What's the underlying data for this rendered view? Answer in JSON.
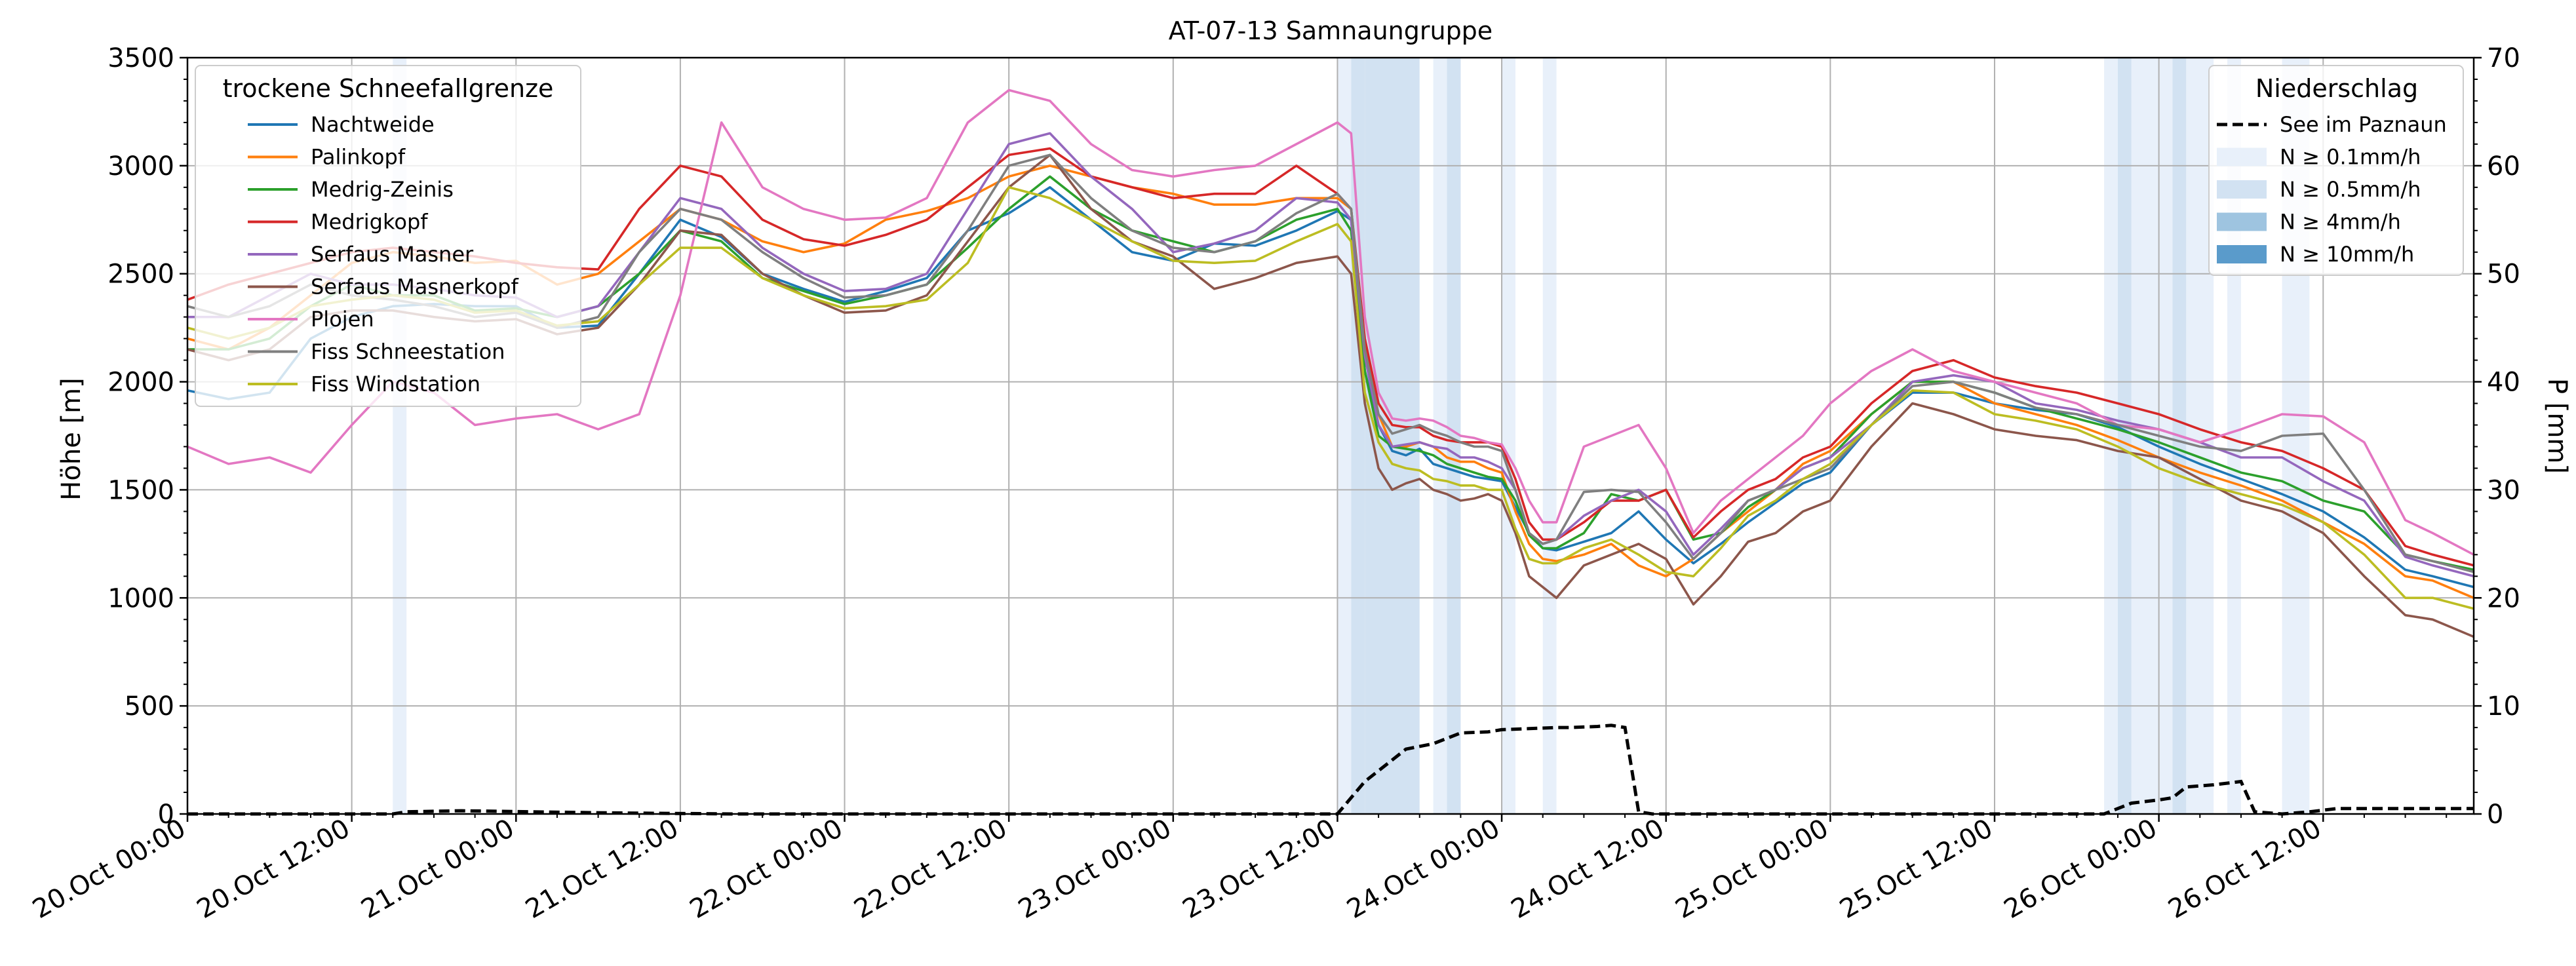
{
  "chart_data": {
    "type": "line",
    "title": "AT-07-13 Samnaungruppe",
    "ylabel": "Höhe [m]",
    "y2label": "P [mm]",
    "xlim_hours": [
      0,
      167
    ],
    "ylim": [
      0,
      3500
    ],
    "y2lim": [
      0,
      70
    ],
    "yticks": [
      0,
      500,
      1000,
      1500,
      2000,
      2500,
      3000,
      3500
    ],
    "y2ticks": [
      0,
      10,
      20,
      30,
      40,
      50,
      60,
      70
    ],
    "grid": true,
    "x_tick_labels": [
      "20.Oct 00:00",
      "20.Oct 12:00",
      "21.Oct 00:00",
      "21.Oct 12:00",
      "22.Oct 00:00",
      "22.Oct 12:00",
      "23.Oct 00:00",
      "23.Oct 12:00",
      "24.Oct 00:00",
      "24.Oct 12:00",
      "25.Oct 00:00",
      "25.Oct 12:00",
      "26.Oct 00:00",
      "26.Oct 12:00"
    ],
    "legend_left": {
      "title": "trockene Schneefallgrenze",
      "placement": "upper-left",
      "entries": [
        "Nachtweide",
        "Palinkopf",
        "Medrig-Zeinis",
        "Medrigkopf",
        "Serfaus Masner",
        "Serfaus Masnerkopf",
        "Plojen",
        "Fiss Schneestation",
        "Fiss Windstation"
      ]
    },
    "legend_right": {
      "title": "Niederschlag",
      "placement": "upper-right",
      "entries": [
        "See im Paznaun",
        "N ≥ 0.1mm/h",
        "N ≥ 0.5mm/h",
        "N ≥ 4mm/h",
        "N ≥ 10mm/h"
      ]
    },
    "precip_band_colors": [
      "#e8f0fa",
      "#d2e2f2",
      "#9ec4e0",
      "#5a9bcb"
    ],
    "precip_bands": [
      {
        "start": 15,
        "end": 16,
        "level": 0
      },
      {
        "start": 84,
        "end": 85,
        "level": 0
      },
      {
        "start": 85,
        "end": 86,
        "level": 1
      },
      {
        "start": 86,
        "end": 90,
        "level": 1
      },
      {
        "start": 91,
        "end": 92,
        "level": 0
      },
      {
        "start": 92,
        "end": 93,
        "level": 1
      },
      {
        "start": 96,
        "end": 97,
        "level": 0
      },
      {
        "start": 99,
        "end": 100,
        "level": 0
      },
      {
        "start": 140,
        "end": 141,
        "level": 0
      },
      {
        "start": 141,
        "end": 142,
        "level": 1
      },
      {
        "start": 142,
        "end": 145,
        "level": 0
      },
      {
        "start": 145,
        "end": 146,
        "level": 1
      },
      {
        "start": 146,
        "end": 148,
        "level": 0
      },
      {
        "start": 149,
        "end": 150,
        "level": 0
      },
      {
        "start": 153,
        "end": 155,
        "level": 0
      }
    ],
    "precip_series": {
      "name": "See im Paznaun",
      "color": "#000000",
      "x": [
        0,
        15,
        16,
        20,
        25,
        31,
        40,
        84,
        86,
        87,
        89,
        91,
        92,
        93,
        95,
        96,
        98,
        100,
        101,
        103,
        104,
        105,
        106,
        107,
        108,
        109,
        140,
        142,
        144,
        145,
        146,
        148,
        150,
        151,
        153,
        155,
        157,
        160,
        165,
        167
      ],
      "values": [
        0,
        0,
        0.2,
        0.3,
        0.2,
        0.1,
        0,
        0,
        3,
        4,
        6,
        6.5,
        7,
        7.5,
        7.6,
        7.8,
        7.9,
        8,
        8,
        8.1,
        8.2,
        8,
        0.2,
        0,
        0,
        0,
        0,
        1,
        1.3,
        1.5,
        2.5,
        2.7,
        3,
        0.2,
        0,
        0.2,
        0.5,
        0.5,
        0.5,
        0.5
      ]
    },
    "x": [
      0,
      3,
      6,
      9,
      12,
      15,
      18,
      21,
      24,
      27,
      30,
      33,
      36,
      39,
      42,
      45,
      48,
      51,
      54,
      57,
      60,
      63,
      66,
      69,
      72,
      75,
      78,
      81,
      84,
      85,
      86,
      87,
      88,
      89,
      90,
      91,
      92,
      93,
      94,
      95,
      96,
      97,
      98,
      99,
      100,
      102,
      104,
      106,
      108,
      110,
      112,
      114,
      116,
      118,
      120,
      123,
      126,
      129,
      132,
      135,
      138,
      141,
      144,
      147,
      150,
      153,
      156,
      159,
      162,
      164,
      167
    ],
    "series": [
      {
        "name": "Nachtweide",
        "color": "#1f77b4",
        "values": [
          1960,
          1920,
          1950,
          2200,
          2300,
          2350,
          2360,
          2350,
          2350,
          2250,
          2260,
          2500,
          2750,
          2670,
          2500,
          2430,
          2370,
          2420,
          2480,
          2700,
          2780,
          2900,
          2750,
          2600,
          2560,
          2640,
          2630,
          2700,
          2790,
          2750,
          2050,
          1800,
          1680,
          1660,
          1690,
          1620,
          1600,
          1580,
          1560,
          1550,
          1540,
          1420,
          1300,
          1230,
          1220,
          1260,
          1300,
          1400,
          1270,
          1160,
          1250,
          1350,
          1440,
          1530,
          1580,
          1800,
          1950,
          1950,
          1900,
          1870,
          1850,
          1790,
          1700,
          1620,
          1550,
          1480,
          1400,
          1280,
          1130,
          1100,
          1050
        ]
      },
      {
        "name": "Palinkopf",
        "color": "#ff7f0e",
        "values": [
          2200,
          2150,
          2250,
          2400,
          2550,
          2600,
          2580,
          2550,
          2560,
          2450,
          2500,
          2650,
          2800,
          2750,
          2650,
          2600,
          2640,
          2750,
          2790,
          2850,
          2950,
          3000,
          2950,
          2900,
          2870,
          2820,
          2820,
          2850,
          2850,
          2800,
          2150,
          1850,
          1700,
          1700,
          1720,
          1700,
          1650,
          1630,
          1630,
          1600,
          1580,
          1400,
          1250,
          1180,
          1170,
          1200,
          1250,
          1150,
          1100,
          1180,
          1300,
          1400,
          1500,
          1620,
          1680,
          1850,
          2000,
          2000,
          1900,
          1850,
          1800,
          1730,
          1650,
          1580,
          1520,
          1450,
          1350,
          1250,
          1100,
          1080,
          1000
        ]
      },
      {
        "name": "Medrig-Zeinis",
        "color": "#2ca02c",
        "values": [
          2150,
          2150,
          2200,
          2350,
          2450,
          2400,
          2400,
          2330,
          2340,
          2300,
          2350,
          2500,
          2700,
          2650,
          2480,
          2420,
          2360,
          2400,
          2450,
          2620,
          2800,
          2950,
          2800,
          2700,
          2650,
          2600,
          2650,
          2750,
          2800,
          2700,
          2050,
          1750,
          1700,
          1690,
          1680,
          1660,
          1620,
          1600,
          1580,
          1560,
          1550,
          1450,
          1290,
          1230,
          1230,
          1300,
          1480,
          1450,
          1500,
          1270,
          1300,
          1420,
          1500,
          1600,
          1650,
          1850,
          2000,
          2000,
          1950,
          1880,
          1830,
          1780,
          1720,
          1650,
          1580,
          1540,
          1450,
          1400,
          1200,
          1170,
          1130
        ]
      },
      {
        "name": "Medrigkopf",
        "color": "#d62728",
        "values": [
          2380,
          2450,
          2500,
          2550,
          2600,
          2620,
          2600,
          2580,
          2550,
          2530,
          2520,
          2800,
          3000,
          2950,
          2750,
          2660,
          2630,
          2680,
          2750,
          2900,
          3050,
          3080,
          2950,
          2900,
          2850,
          2870,
          2870,
          3000,
          2870,
          2800,
          2200,
          1900,
          1800,
          1790,
          1790,
          1750,
          1730,
          1720,
          1720,
          1720,
          1700,
          1550,
          1350,
          1270,
          1270,
          1350,
          1450,
          1450,
          1500,
          1280,
          1400,
          1500,
          1550,
          1650,
          1700,
          1900,
          2050,
          2100,
          2020,
          1980,
          1950,
          1900,
          1850,
          1780,
          1720,
          1680,
          1600,
          1500,
          1240,
          1200,
          1150
        ]
      },
      {
        "name": "Serfaus Masner",
        "color": "#9467bd",
        "values": [
          2300,
          2300,
          2400,
          2500,
          2450,
          2450,
          2430,
          2400,
          2390,
          2300,
          2350,
          2600,
          2850,
          2800,
          2620,
          2500,
          2420,
          2430,
          2500,
          2800,
          3100,
          3150,
          2950,
          2800,
          2600,
          2640,
          2700,
          2850,
          2830,
          2750,
          2120,
          1800,
          1700,
          1710,
          1720,
          1700,
          1690,
          1650,
          1650,
          1630,
          1600,
          1500,
          1300,
          1250,
          1270,
          1380,
          1450,
          1500,
          1400,
          1200,
          1320,
          1450,
          1500,
          1600,
          1650,
          1800,
          2000,
          2030,
          2000,
          1900,
          1870,
          1820,
          1780,
          1720,
          1650,
          1650,
          1540,
          1450,
          1190,
          1150,
          1100
        ]
      },
      {
        "name": "Serfaus Masnerkopf",
        "color": "#8c564b",
        "values": [
          2150,
          2100,
          2150,
          2300,
          2330,
          2330,
          2300,
          2280,
          2290,
          2220,
          2250,
          2450,
          2700,
          2680,
          2500,
          2400,
          2320,
          2330,
          2400,
          2650,
          2900,
          3050,
          2800,
          2650,
          2580,
          2430,
          2480,
          2550,
          2580,
          2500,
          1900,
          1600,
          1500,
          1530,
          1550,
          1500,
          1480,
          1450,
          1460,
          1480,
          1450,
          1300,
          1100,
          1050,
          1000,
          1150,
          1200,
          1250,
          1180,
          970,
          1100,
          1260,
          1300,
          1400,
          1450,
          1700,
          1900,
          1850,
          1780,
          1750,
          1730,
          1680,
          1650,
          1550,
          1450,
          1400,
          1300,
          1100,
          920,
          900,
          820
        ]
      },
      {
        "name": "Plojen",
        "color": "#e377c2",
        "values": [
          1700,
          1620,
          1650,
          1580,
          1800,
          2000,
          1950,
          1800,
          1830,
          1850,
          1780,
          1850,
          2400,
          3200,
          2900,
          2800,
          2750,
          2760,
          2850,
          3200,
          3350,
          3300,
          3100,
          2980,
          2950,
          2980,
          3000,
          3100,
          3200,
          3150,
          2300,
          1950,
          1830,
          1820,
          1830,
          1820,
          1790,
          1750,
          1740,
          1720,
          1710,
          1600,
          1450,
          1350,
          1350,
          1700,
          1750,
          1800,
          1600,
          1300,
          1450,
          1550,
          1650,
          1750,
          1900,
          2050,
          2150,
          2050,
          2000,
          1950,
          1900,
          1800,
          1780,
          1720,
          1780,
          1850,
          1840,
          1720,
          1360,
          1300,
          1200
        ]
      },
      {
        "name": "Fiss Schneestation",
        "color": "#7f7f7f",
        "values": [
          2350,
          2300,
          2350,
          2450,
          2400,
          2380,
          2350,
          2300,
          2320,
          2250,
          2300,
          2600,
          2800,
          2750,
          2600,
          2480,
          2390,
          2400,
          2450,
          2700,
          3000,
          3050,
          2850,
          2700,
          2620,
          2600,
          2650,
          2780,
          2870,
          2800,
          2150,
          1850,
          1760,
          1780,
          1800,
          1770,
          1750,
          1720,
          1700,
          1700,
          1680,
          1500,
          1300,
          1250,
          1270,
          1490,
          1500,
          1490,
          1350,
          1180,
          1300,
          1450,
          1500,
          1550,
          1600,
          1800,
          1980,
          2000,
          1950,
          1880,
          1850,
          1800,
          1750,
          1700,
          1680,
          1750,
          1760,
          1500,
          1200,
          1170,
          1120
        ]
      },
      {
        "name": "Fiss Windstation",
        "color": "#bcbd22",
        "values": [
          2250,
          2200,
          2250,
          2350,
          2380,
          2400,
          2380,
          2320,
          2330,
          2260,
          2280,
          2450,
          2620,
          2620,
          2480,
          2400,
          2340,
          2350,
          2380,
          2550,
          2900,
          2850,
          2750,
          2650,
          2560,
          2550,
          2560,
          2650,
          2730,
          2650,
          1950,
          1720,
          1620,
          1600,
          1590,
          1550,
          1540,
          1520,
          1520,
          1500,
          1500,
          1320,
          1180,
          1160,
          1160,
          1230,
          1270,
          1200,
          1120,
          1100,
          1230,
          1380,
          1450,
          1550,
          1620,
          1800,
          1960,
          1950,
          1850,
          1820,
          1780,
          1700,
          1600,
          1530,
          1480,
          1430,
          1350,
          1200,
          1000,
          1000,
          950
        ]
      }
    ]
  }
}
